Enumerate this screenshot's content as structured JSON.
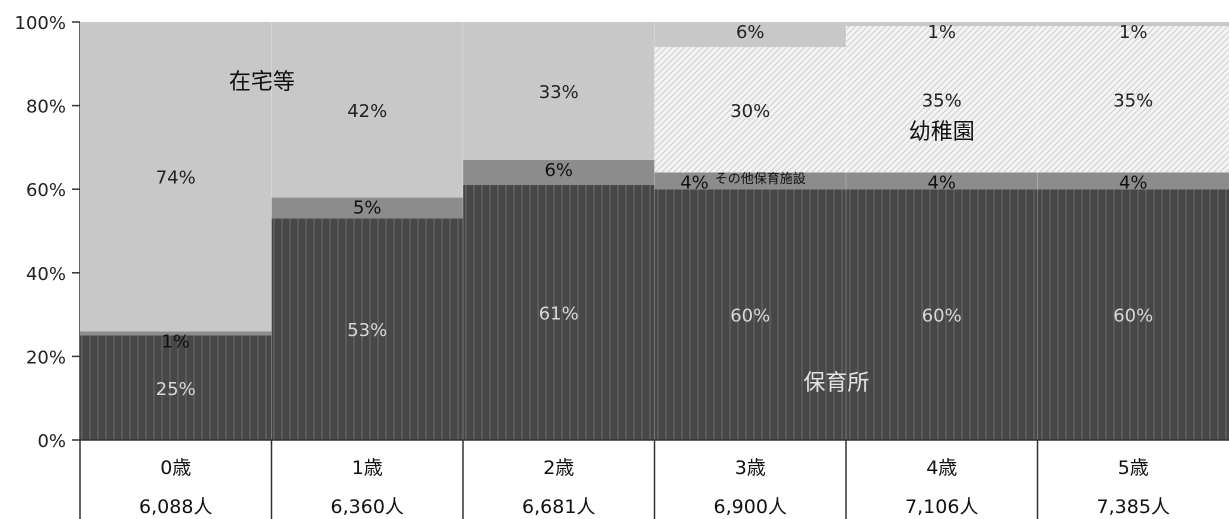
{
  "chart_data": {
    "type": "bar",
    "stacked": true,
    "percent": true,
    "title": "",
    "xlabel": "",
    "ylabel": "",
    "ylim": [
      0,
      100
    ],
    "yticks": [
      "0%",
      "20%",
      "40%",
      "60%",
      "80%",
      "100%"
    ],
    "grid": false,
    "legend": "none (series names written inside the chart)",
    "categories": [
      "0歳",
      "1歳",
      "2歳",
      "3歳",
      "4歳",
      "5歳"
    ],
    "counts": [
      "6,088人",
      "6,360人",
      "6,681人",
      "6,900人",
      "7,106人",
      "7,385人"
    ],
    "series": [
      {
        "name": "保育所",
        "values": [
          25,
          53,
          61,
          60,
          60,
          60
        ],
        "labels": [
          "25%",
          "53%",
          "61%",
          "60%",
          "60%",
          "60%"
        ],
        "color": "#4a4a4a"
      },
      {
        "name": "その他保育施設",
        "values": [
          1,
          5,
          6,
          4,
          4,
          4
        ],
        "labels": [
          "1%",
          "5%",
          "6%",
          "4%",
          "4%",
          "4%"
        ],
        "color": "#8a8a8a"
      },
      {
        "name": "幼稚園",
        "values": [
          0,
          0,
          0,
          30,
          35,
          35
        ],
        "labels": [
          "",
          "",
          "",
          "30%",
          "35%",
          "35%"
        ],
        "color": "#f1f1f1"
      },
      {
        "name": "在宅等",
        "values": [
          74,
          42,
          33,
          6,
          1,
          1
        ],
        "labels": [
          "74%",
          "42%",
          "33%",
          "6%",
          "1%",
          "1%"
        ],
        "color": "#c6c6c6"
      }
    ]
  }
}
